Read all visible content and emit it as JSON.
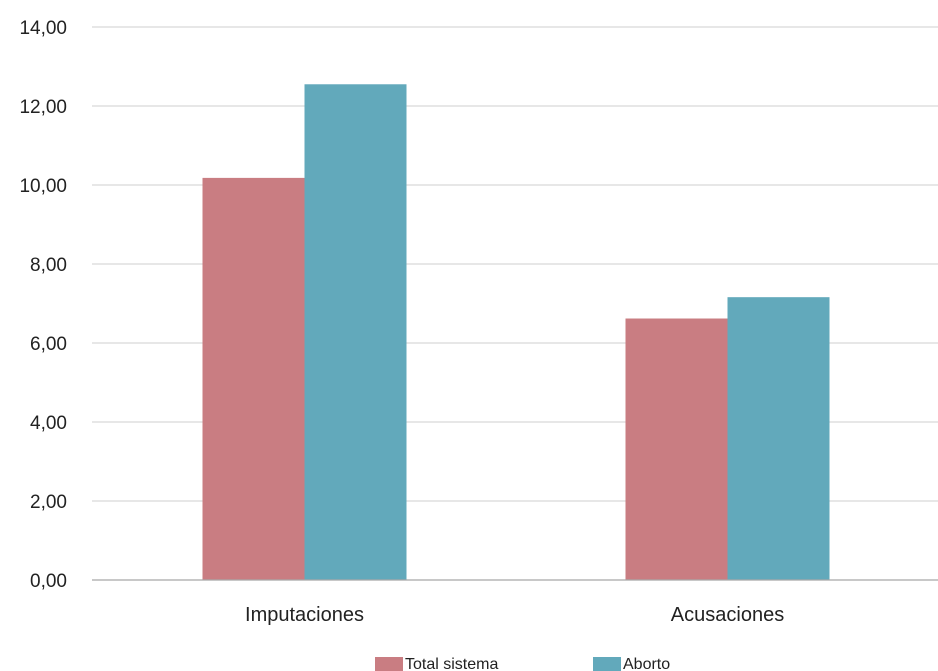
{
  "chart_data": {
    "type": "bar",
    "title": "",
    "xlabel": "",
    "ylabel": "",
    "categories": [
      "Imputaciones",
      "Acusaciones"
    ],
    "series": [
      {
        "name": "Total sistema",
        "values": [
          10.18,
          6.62
        ],
        "color": "#c97d82"
      },
      {
        "name": "Aborto",
        "values": [
          12.55,
          7.16
        ],
        "color": "#62a9bb"
      }
    ],
    "ylim": [
      0,
      14
    ],
    "yticks": [
      "0,00",
      "2,00",
      "4,00",
      "6,00",
      "8,00",
      "10,00",
      "12,00",
      "14,00"
    ],
    "grid": true,
    "legend_position": "bottom"
  }
}
